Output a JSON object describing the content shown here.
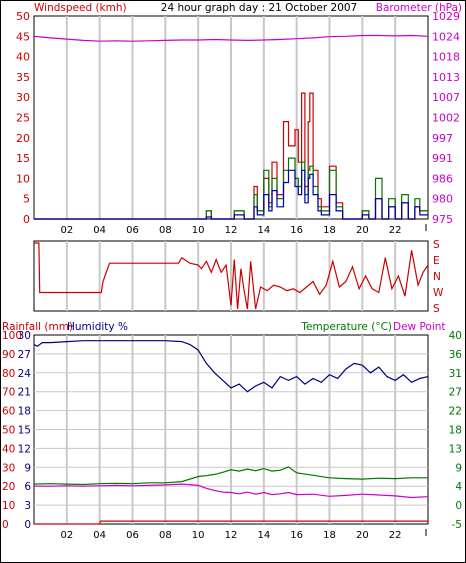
{
  "header": {
    "title": "24 hour graph day : 21 October 2007"
  },
  "chart_data": [
    {
      "id": "wind-baro",
      "type": "line",
      "title": "24 hour graph day : 21 October 2007",
      "left_axis": {
        "label": "Windspeed (kmh)",
        "color": "#cc0000",
        "ticks": [
          50,
          45,
          40,
          35,
          30,
          25,
          20,
          15,
          10,
          5,
          0
        ],
        "range": [
          0,
          50
        ]
      },
      "right_axis": {
        "label": "Barometer (hPa)",
        "color": "#cc00cc",
        "ticks": [
          "1029",
          "1024",
          "1018",
          "1013",
          "1007",
          "1002",
          "997",
          "991",
          "986",
          "980",
          "975"
        ]
      },
      "x_ticks": [
        "02",
        "04",
        "06",
        "08",
        "10",
        "12",
        "14",
        "16",
        "18",
        "20",
        "22"
      ],
      "x_range": [
        0,
        24
      ],
      "grid": true,
      "series": [
        {
          "color": "#cc00cc",
          "x": [
            0,
            0.5,
            1,
            2,
            3,
            4,
            5,
            6,
            7,
            8,
            9,
            10,
            11,
            12,
            13,
            14,
            15,
            16,
            17,
            18,
            19,
            20,
            21,
            22,
            23,
            24
          ],
          "y": [
            45,
            44.8,
            44.6,
            44.3,
            44,
            43.8,
            43.9,
            43.8,
            43.9,
            44,
            44.1,
            44.1,
            44.2,
            44.1,
            44,
            44.1,
            44.2,
            44.4,
            44.6,
            44.9,
            45,
            45.2,
            45.2,
            45.1,
            45.2,
            45
          ]
        },
        {
          "color": "#cc0000",
          "x": [
            0,
            10.2,
            10.5,
            10.8,
            11.6,
            12.2,
            12.8,
            13.4,
            13.6,
            14,
            14.3,
            14.5,
            14.8,
            15.2,
            15.5,
            15.9,
            16.1,
            16.3,
            16.5,
            16.7,
            16.8,
            17,
            17.3,
            17.5,
            18,
            18.4,
            18.8,
            19.5,
            20,
            20.4,
            20.8,
            21.2,
            21.6,
            22,
            22.4,
            22.8,
            23.2,
            23.5,
            24
          ],
          "y": [
            0,
            0,
            2,
            0,
            0,
            2,
            0,
            8,
            2,
            10,
            4,
            14,
            6,
            24,
            18,
            22,
            14,
            31,
            8,
            24,
            31,
            12,
            5,
            3,
            13,
            4,
            0,
            0,
            2,
            0,
            5,
            0,
            3,
            0,
            4,
            0,
            3,
            2,
            2
          ]
        },
        {
          "color": "#007700",
          "x": [
            0,
            10.2,
            10.5,
            10.8,
            11.6,
            12.2,
            12.8,
            13.4,
            13.6,
            14,
            14.3,
            14.5,
            14.8,
            15.2,
            15.5,
            15.9,
            16.1,
            16.3,
            16.5,
            16.7,
            16.8,
            17,
            17.3,
            17.5,
            18,
            18.4,
            18.8,
            19.5,
            20,
            20.4,
            20.8,
            21.2,
            21.6,
            22,
            22.4,
            22.8,
            23.2,
            23.5,
            24
          ],
          "y": [
            0,
            0,
            2,
            0,
            0,
            2,
            0,
            6,
            2,
            12,
            3,
            10,
            5,
            12,
            15,
            10,
            8,
            14,
            6,
            12,
            13,
            8,
            3,
            2,
            12,
            3,
            0,
            0,
            2,
            0,
            10,
            0,
            5,
            0,
            6,
            0,
            5,
            2,
            2
          ]
        },
        {
          "color": "#0000aa",
          "x": [
            0,
            10.2,
            10.5,
            10.8,
            11.6,
            12.2,
            12.8,
            13.4,
            13.6,
            14,
            14.3,
            14.5,
            14.8,
            15.2,
            15.5,
            15.9,
            16.1,
            16.3,
            16.5,
            16.7,
            16.8,
            17,
            17.3,
            17.5,
            18,
            18.4,
            18.8,
            19.5,
            20,
            20.4,
            20.8,
            21.2,
            21.6,
            22,
            22.4,
            22.8,
            23.2,
            23.5,
            24
          ],
          "y": [
            0,
            0,
            0.5,
            0,
            0,
            1,
            0,
            3,
            1,
            6,
            2,
            7,
            3,
            9,
            12,
            8,
            6,
            12,
            4,
            10,
            11,
            6,
            2,
            1,
            6,
            2,
            0,
            0,
            1,
            0,
            5,
            0,
            3,
            0,
            4,
            0,
            3,
            1,
            1
          ]
        }
      ]
    },
    {
      "id": "wind-direction",
      "type": "line",
      "right_axis": {
        "labels": [
          "S",
          "E",
          "N",
          "W",
          "S"
        ]
      },
      "x_range": [
        0,
        24
      ],
      "grid": true,
      "series": [
        {
          "color": "#cc0000",
          "x": [
            0,
            0.3,
            0.35,
            4.1,
            4.2,
            4.6,
            6,
            8,
            8.8,
            9,
            9.5,
            10,
            10.2,
            10.5,
            10.8,
            11.1,
            11.4,
            11.7,
            12,
            12.2,
            12.4,
            12.6,
            12.8,
            13,
            13.2,
            13.5,
            13.8,
            14.2,
            14.6,
            15,
            15.4,
            15.8,
            16.2,
            16.6,
            17,
            17.4,
            17.8,
            18.2,
            18.6,
            19,
            19.4,
            19.8,
            20.2,
            20.6,
            21,
            21.4,
            21.8,
            22.2,
            22.6,
            23,
            23.4,
            23.7,
            24
          ],
          "y": [
            360,
            360,
            90,
            90,
            150,
            250,
            250,
            250,
            250,
            280,
            250,
            240,
            220,
            260,
            200,
            270,
            200,
            240,
            20,
            270,
            0,
            220,
            100,
            0,
            260,
            0,
            120,
            100,
            130,
            120,
            100,
            110,
            90,
            120,
            150,
            80,
            130,
            260,
            120,
            150,
            230,
            110,
            180,
            110,
            90,
            280,
            110,
            180,
            70,
            320,
            130,
            200,
            240
          ]
        }
      ]
    },
    {
      "id": "rain-temp",
      "type": "line",
      "left_axis_1": {
        "label": "Rainfall (mm)",
        "color": "#cc0000",
        "ticks": [
          "100",
          "90",
          "80",
          "70",
          "60",
          "50",
          "40",
          "30",
          "20",
          "10",
          "0"
        ]
      },
      "left_axis_2": {
        "label": "Humidity %",
        "color": "#000080",
        "ticks": [
          "30",
          "27",
          "24",
          "21",
          "18",
          "15",
          "12",
          "9",
          "6",
          "3",
          "0"
        ]
      },
      "right_axis": {
        "label": "Temperature (°C)",
        "color": "#007700",
        "ticks": [
          "40",
          "36",
          "31",
          "27",
          "22",
          "18",
          "13",
          "9",
          "4",
          "0",
          "-5"
        ],
        "range": [
          -5,
          40
        ]
      },
      "right_label_2": {
        "label": "Dew Point",
        "color": "#cc00cc"
      },
      "x_ticks": [
        "02",
        "04",
        "06",
        "08",
        "10",
        "12",
        "14",
        "16",
        "18",
        "20",
        "22"
      ],
      "x_range": [
        0,
        24
      ],
      "grid": true,
      "series": [
        {
          "color": "#000080",
          "x": [
            0,
            0.2,
            0.5,
            1,
            2,
            3,
            4,
            5,
            6,
            7,
            8,
            9,
            9.5,
            10,
            10.5,
            11,
            11.5,
            12,
            12.5,
            13,
            13.5,
            14,
            14.5,
            15,
            15.5,
            16,
            16.5,
            17,
            17.5,
            18,
            18.5,
            19,
            19.5,
            20,
            20.5,
            21,
            21.5,
            22,
            22.5,
            23,
            23.5,
            24
          ],
          "y": [
            95,
            94,
            96,
            96,
            96.5,
            97,
            97,
            97,
            97,
            97,
            97,
            96.5,
            95,
            92,
            85,
            80,
            76,
            72,
            74,
            70,
            73,
            75,
            72,
            78,
            76,
            78,
            74,
            77,
            75,
            79,
            77,
            82,
            85,
            84,
            80,
            83,
            78,
            76,
            79,
            75,
            77,
            78
          ]
        },
        {
          "color": "#007700",
          "x": [
            0,
            1,
            2,
            3,
            4,
            5,
            6,
            7,
            8,
            9,
            10,
            10.5,
            11,
            11.5,
            12,
            12.5,
            13,
            13.5,
            14,
            14.5,
            15,
            15.5,
            16,
            17,
            18,
            19,
            20,
            21,
            22,
            23,
            24
          ],
          "y": [
            4.5,
            4.6,
            4.5,
            4.4,
            4.6,
            4.7,
            4.6,
            4.8,
            4.8,
            5.1,
            6.3,
            6.5,
            6.8,
            7.3,
            7.9,
            7.6,
            8.1,
            7.7,
            8.2,
            7.6,
            7.8,
            8.6,
            7.2,
            6.6,
            6.0,
            5.8,
            5.7,
            5.9,
            5.8,
            6.0,
            6.0
          ]
        },
        {
          "color": "#cc00cc",
          "x": [
            0,
            1,
            2,
            3,
            4,
            5,
            6,
            7,
            8,
            9,
            10,
            10.5,
            11,
            11.5,
            12,
            12.5,
            13,
            13.5,
            14,
            14.5,
            15,
            15.5,
            16,
            17,
            18,
            19,
            20,
            21,
            22,
            23,
            24
          ],
          "y": [
            4.0,
            4.0,
            4.1,
            4.0,
            4.1,
            4.2,
            4.1,
            4.2,
            4.3,
            4.5,
            4.2,
            3.5,
            3.0,
            2.6,
            2.5,
            2.2,
            2.6,
            2.1,
            2.5,
            2.0,
            2.2,
            2.5,
            2.0,
            2.1,
            1.6,
            1.8,
            2.1,
            1.9,
            1.7,
            1.3,
            1.5
          ]
        },
        {
          "color": "#cc0000",
          "x": [
            0,
            4,
            4.05,
            24
          ],
          "y": [
            -5,
            -5,
            -4.3,
            -4.3
          ]
        }
      ]
    }
  ]
}
